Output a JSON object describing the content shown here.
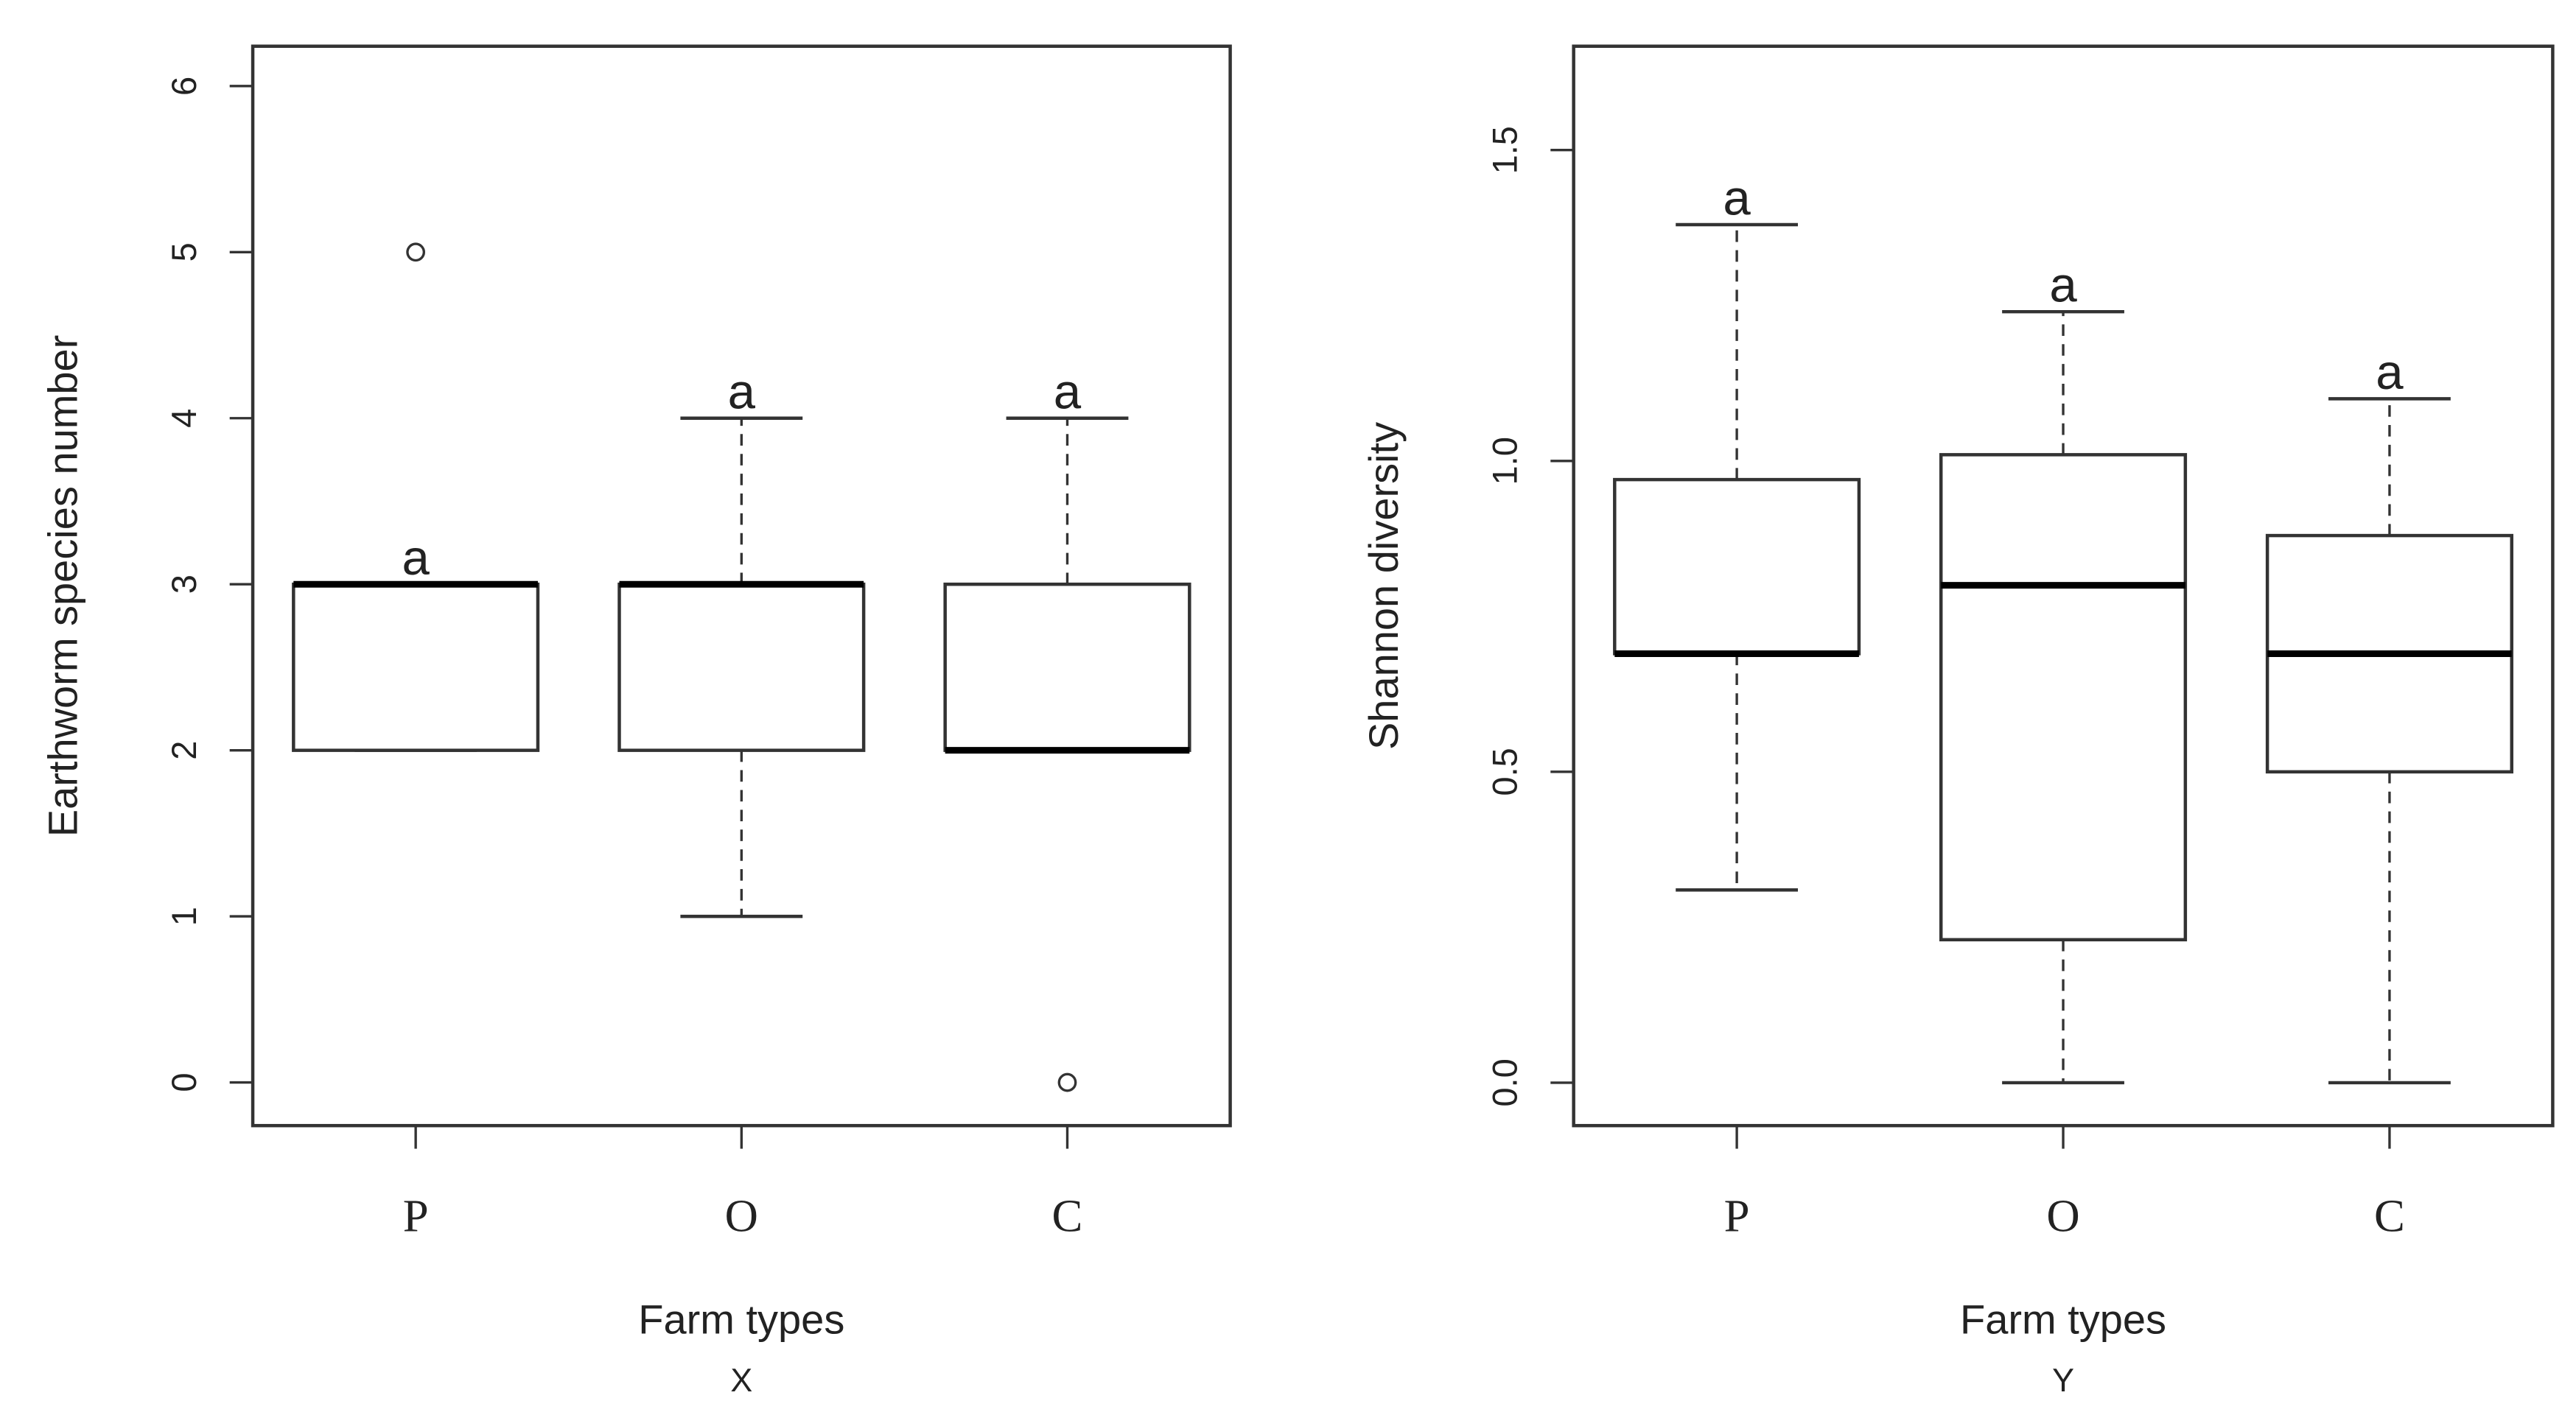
{
  "chart_data": [
    {
      "type": "box",
      "ylabel": "Earthworm species number",
      "xlabel": "Farm types",
      "caption": "X",
      "categories": [
        "P",
        "O",
        "C"
      ],
      "annotations": [
        "a",
        "a",
        "a"
      ],
      "ylim": [
        -0.26,
        6.24
      ],
      "yticks": [
        0,
        1,
        2,
        3,
        4,
        5,
        6
      ],
      "boxes": [
        {
          "low": 2,
          "q1": 2,
          "median": 3,
          "q3": 3,
          "high": 3,
          "outliers": [
            5
          ]
        },
        {
          "low": 1,
          "q1": 2,
          "median": 3,
          "q3": 3,
          "high": 4
        },
        {
          "low": 2,
          "q1": 2,
          "median": 2,
          "q3": 3,
          "high": 4,
          "outliers": [
            0
          ]
        }
      ]
    },
    {
      "type": "box",
      "ylabel": "Shannon diversity",
      "xlabel": "Farm types",
      "caption": "Y",
      "categories": [
        "P",
        "O",
        "C"
      ],
      "annotations": [
        "a",
        "a",
        "a"
      ],
      "ylim": [
        -0.069,
        1.667
      ],
      "yticks": [
        {
          "value": 0,
          "label": "0.0"
        },
        0.5,
        {
          "value": 1,
          "label": "1.0"
        },
        1.5
      ],
      "boxes": [
        {
          "low": 0.31,
          "q1": 0.69,
          "median": 0.69,
          "q3": 0.97,
          "high": 1.38
        },
        {
          "low": 0,
          "q1": 0.23,
          "median": 0.8,
          "q3": 1.01,
          "high": 1.24
        },
        {
          "low": 0,
          "q1": 0.5,
          "median": 0.69,
          "q3": 0.88,
          "high": 1.1
        }
      ]
    }
  ]
}
